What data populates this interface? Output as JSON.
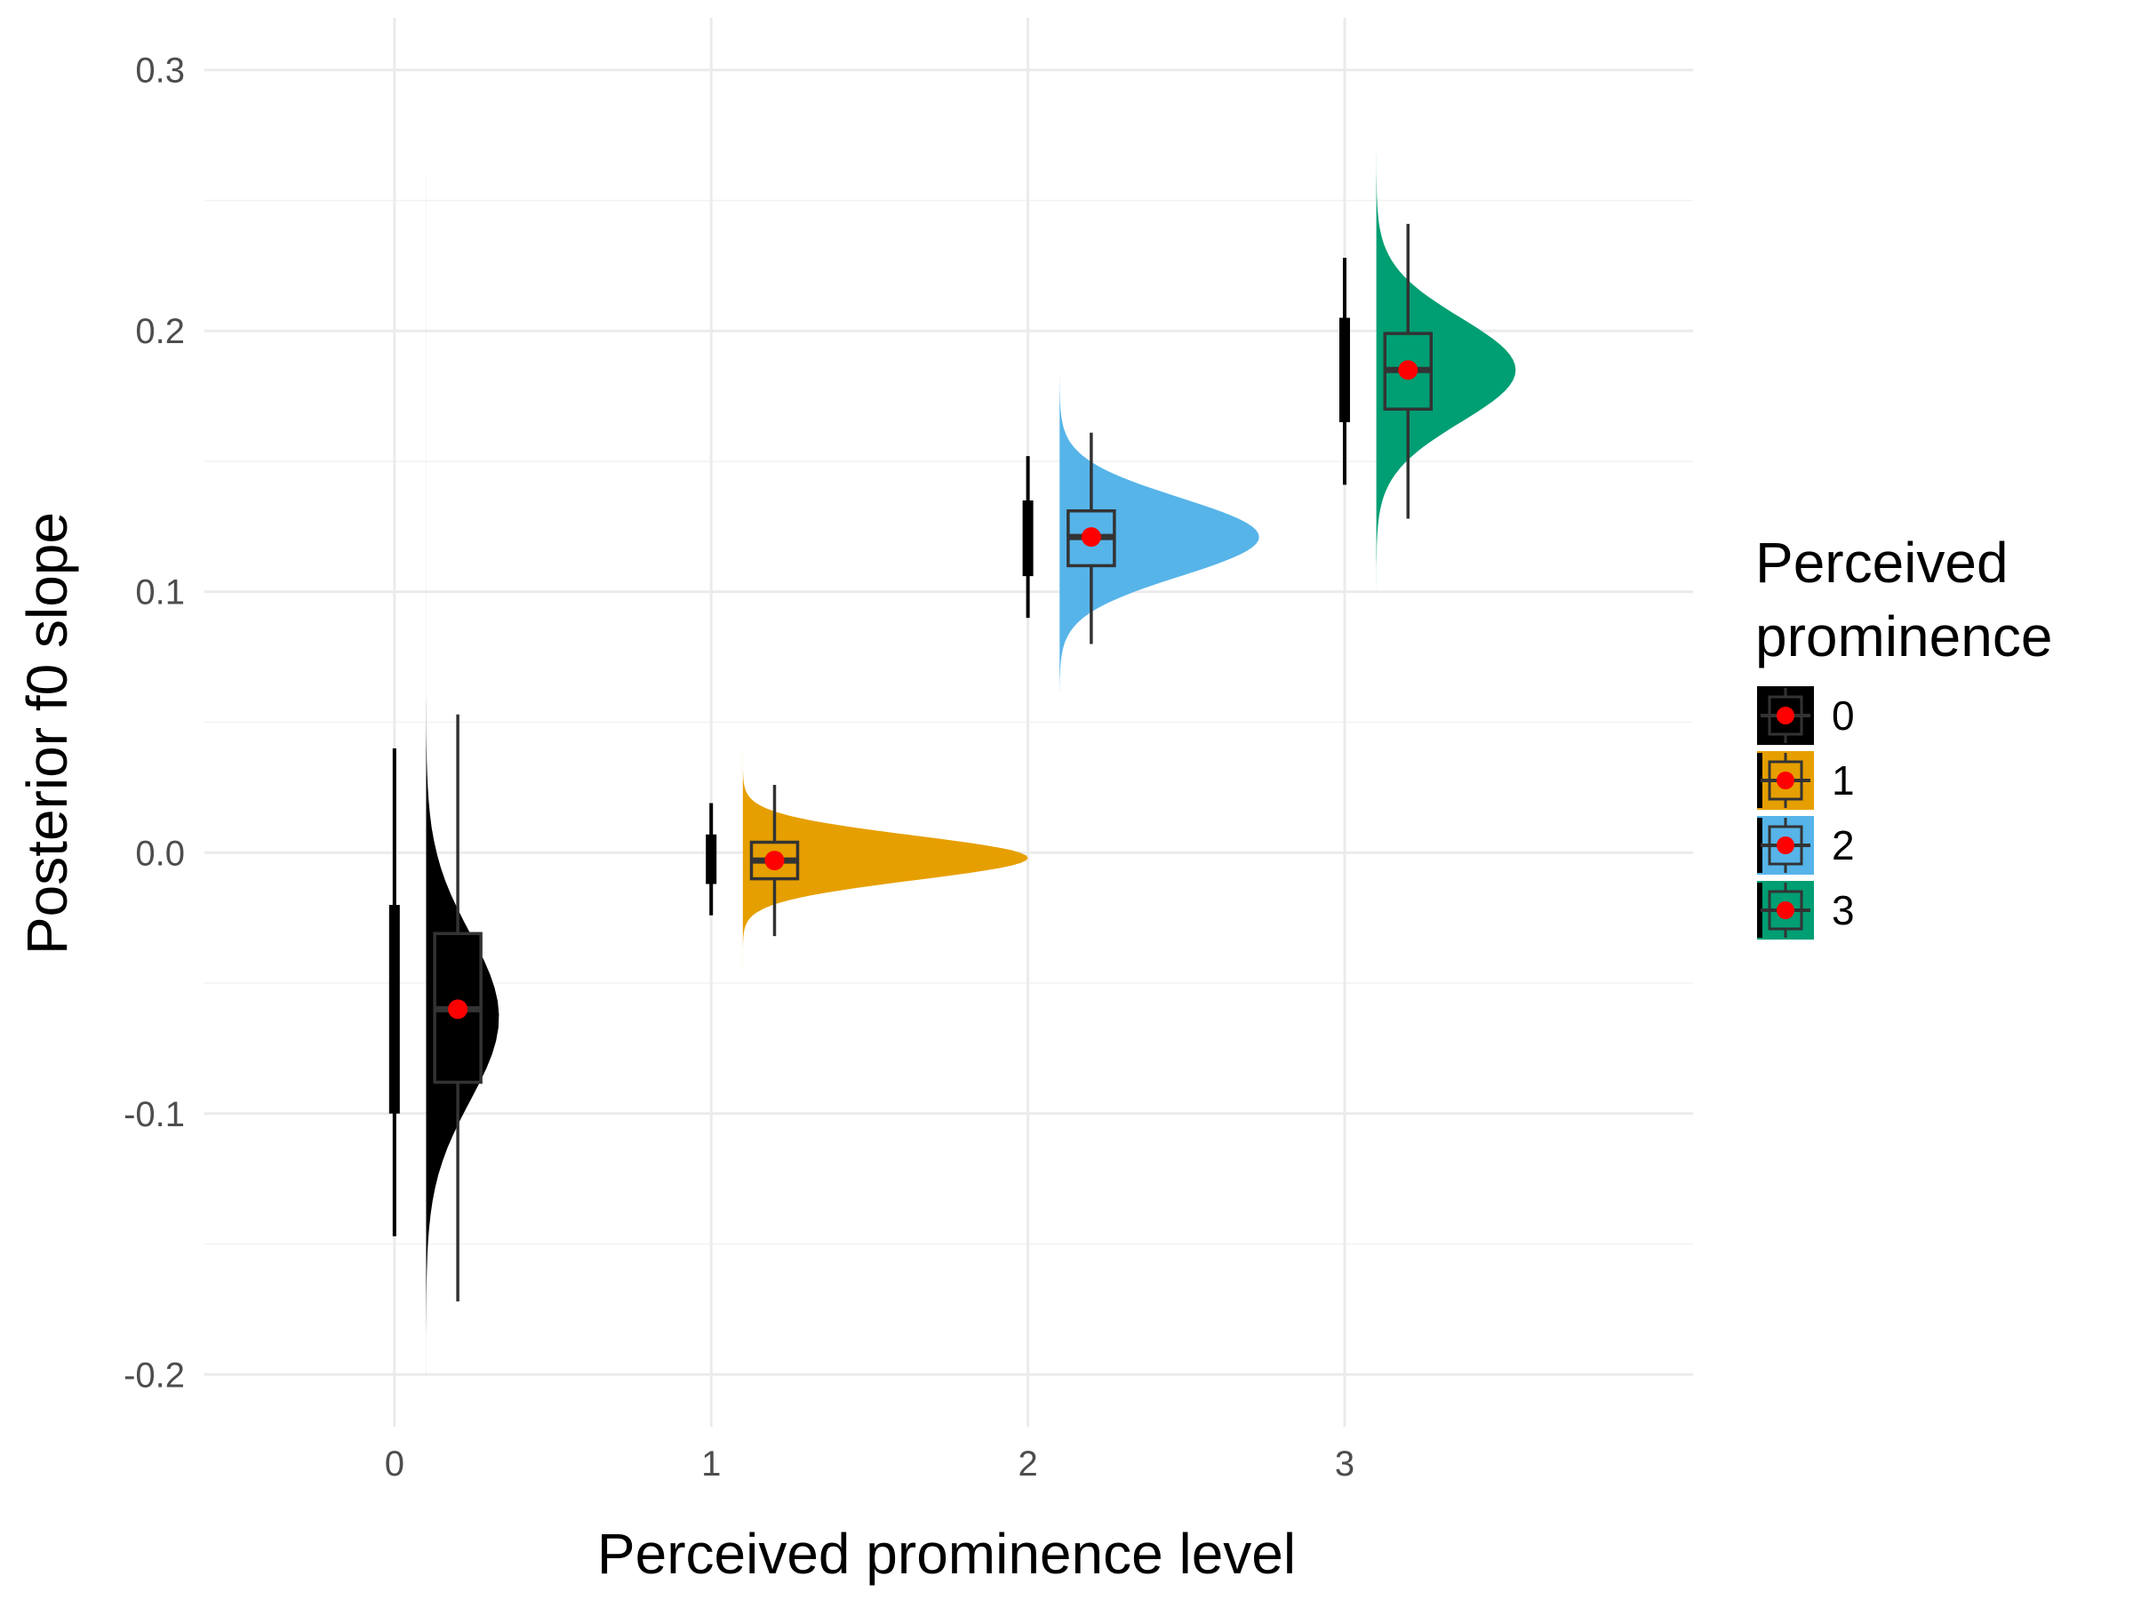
{
  "chart_data": {
    "type": "raincloud",
    "title": "",
    "xlabel": "Perceived prominence level",
    "ylabel": "Posterior f0 slope",
    "xlim": [
      -0.6,
      4.1
    ],
    "ylim": [
      -0.22,
      0.32
    ],
    "x_ticks": [
      0,
      1,
      2,
      3
    ],
    "x_tick_labels": [
      "0",
      "1",
      "2",
      "3"
    ],
    "y_ticks": [
      -0.2,
      -0.1,
      0.0,
      0.1,
      0.2,
      0.3
    ],
    "y_tick_labels": [
      "-0.2",
      "-0.1",
      "0.0",
      "0.1",
      "0.2",
      "0.3"
    ],
    "grid": true,
    "legend": {
      "title_lines": [
        "Perceived",
        "prominence"
      ],
      "placement": "right",
      "entries": [
        "0",
        "1",
        "2",
        "3"
      ]
    },
    "point_color": "#FF0000",
    "groups": [
      {
        "level": "0",
        "color": "#000000",
        "density": {
          "min": -0.2,
          "max": 0.26,
          "peak": -0.063,
          "spread": 0.032,
          "width": 0.23
        },
        "box": {
          "q1": -0.088,
          "median": -0.06,
          "q3": -0.031,
          "whisker_low": -0.172,
          "whisker_high": 0.053
        },
        "interval": {
          "inner_low": -0.1,
          "inner_high": -0.02,
          "outer_low": -0.147,
          "outer_high": 0.04
        },
        "mean": -0.06
      },
      {
        "level": "1",
        "color": "#E69F00",
        "density": {
          "min": -0.046,
          "max": 0.04,
          "peak": -0.002,
          "spread": 0.0085,
          "width": 0.9
        },
        "box": {
          "q1": -0.01,
          "median": -0.003,
          "q3": 0.004,
          "whisker_low": -0.032,
          "whisker_high": 0.026
        },
        "interval": {
          "inner_low": -0.012,
          "inner_high": 0.007,
          "outer_low": -0.024,
          "outer_high": 0.019
        },
        "mean": -0.003
      },
      {
        "level": "2",
        "color": "#56B4E9",
        "density": {
          "min": 0.062,
          "max": 0.183,
          "peak": 0.121,
          "spread": 0.015,
          "width": 0.63
        },
        "box": {
          "q1": 0.11,
          "median": 0.121,
          "q3": 0.131,
          "whisker_low": 0.08,
          "whisker_high": 0.161
        },
        "interval": {
          "inner_low": 0.106,
          "inner_high": 0.135,
          "outer_low": 0.09,
          "outer_high": 0.152
        },
        "mean": 0.121
      },
      {
        "level": "3",
        "color": "#009E73",
        "density": {
          "min": 0.095,
          "max": 0.275,
          "peak": 0.185,
          "spread": 0.02,
          "width": 0.44
        },
        "box": {
          "q1": 0.17,
          "median": 0.185,
          "q3": 0.199,
          "whisker_low": 0.128,
          "whisker_high": 0.241
        },
        "interval": {
          "inner_low": 0.165,
          "inner_high": 0.205,
          "outer_low": 0.141,
          "outer_high": 0.228
        },
        "mean": 0.185
      }
    ]
  }
}
